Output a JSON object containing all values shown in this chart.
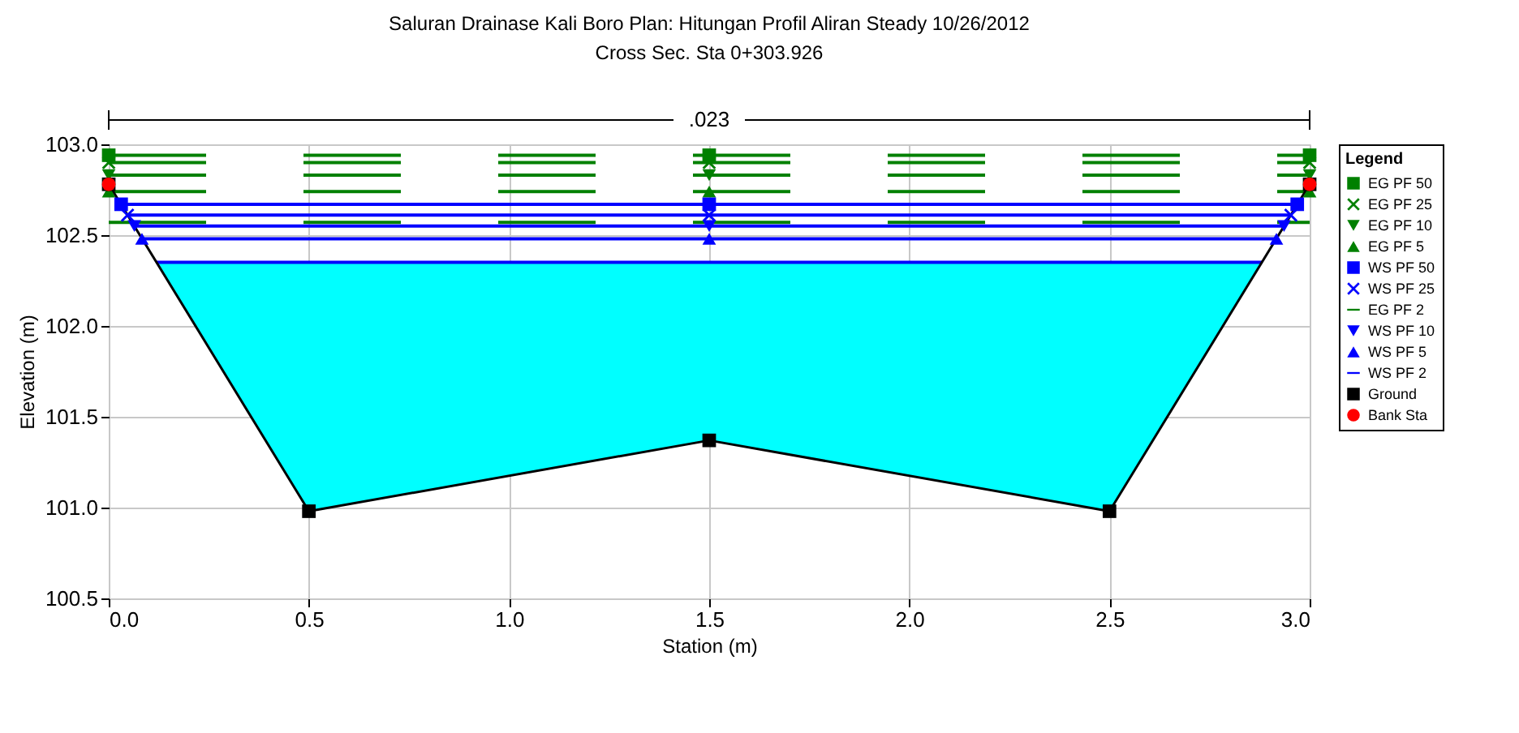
{
  "chart_data": {
    "type": "line",
    "title": "Saluran Drainase Kali Boro      Plan: Hitungan Profil Aliran Steady      10/26/2012",
    "subtitle": "Cross Sec. Sta 0+303.926",
    "xlabel": "Station (m)",
    "ylabel": "Elevation (m)",
    "legend_title": "Legend",
    "annotations": [
      ".023"
    ],
    "xlim": [
      0,
      3
    ],
    "ylim": [
      100.5,
      103
    ],
    "xticks": [
      {
        "value": 0,
        "label": "0.0"
      },
      0.5,
      {
        "value": 1,
        "label": "1.0"
      },
      1.5,
      {
        "value": 2,
        "label": "2.0"
      },
      2.5,
      {
        "value": 3,
        "label": "3.0"
      }
    ],
    "yticks": [
      100.5,
      {
        "value": 101,
        "label": "101.0"
      },
      101.5,
      {
        "value": 102,
        "label": "102.0"
      },
      102.5,
      {
        "value": 103,
        "label": "103.0"
      }
    ],
    "grid": true,
    "legend": "right",
    "series": [
      {
        "name": "EG PF 50",
        "color": "#008000",
        "marker": "square",
        "line_style": "dashed",
        "x": [
          0,
          1.5,
          3
        ],
        "values": [
          102.94,
          102.94,
          102.94
        ]
      },
      {
        "name": "EG PF 25",
        "color": "#008000",
        "marker": "cross",
        "line_style": "dashed",
        "x": [
          0,
          1.5,
          3
        ],
        "values": [
          102.9,
          102.9,
          102.9
        ]
      },
      {
        "name": "EG PF 10",
        "color": "#008000",
        "marker": "triangle_down",
        "line_style": "dashed",
        "x": [
          0,
          1.5,
          3
        ],
        "values": [
          102.83,
          102.83,
          102.83
        ]
      },
      {
        "name": "EG PF 5",
        "color": "#008000",
        "marker": "triangle",
        "line_style": "dashed",
        "x": [
          0,
          1.5,
          3
        ],
        "values": [
          102.74,
          102.74,
          102.74
        ]
      },
      {
        "name": "WS PF 50",
        "color": "#0000ff",
        "marker": "square",
        "line_style": "solid",
        "x": [
          0.031,
          1.5,
          2.969
        ],
        "values": [
          102.67,
          102.67,
          102.67
        ]
      },
      {
        "name": "WS PF 25",
        "color": "#0000ff",
        "marker": "cross",
        "line_style": "solid",
        "x": [
          0.047,
          1.5,
          2.953
        ],
        "values": [
          102.61,
          102.61,
          102.61
        ]
      },
      {
        "name": "EG PF 2",
        "color": "#008000",
        "marker": "none",
        "line_style": "dashed",
        "x": [
          0,
          1.5,
          3
        ],
        "values": [
          102.57,
          102.57,
          102.57
        ]
      },
      {
        "name": "WS PF 10",
        "color": "#0000ff",
        "marker": "triangle_down",
        "line_style": "solid",
        "x": [
          0.064,
          1.5,
          2.936
        ],
        "values": [
          102.55,
          102.55,
          102.55
        ]
      },
      {
        "name": "WS PF 5",
        "color": "#0000ff",
        "marker": "triangle",
        "line_style": "solid",
        "x": [
          0.083,
          1.5,
          2.917
        ],
        "values": [
          102.48,
          102.48,
          102.48
        ]
      },
      {
        "name": "WS PF 2",
        "color": "#0000ff",
        "marker": "none",
        "line_style": "solid",
        "x": [
          0.119,
          0.5,
          1.5,
          2.5,
          2.881
        ],
        "values": [
          102.35,
          102.35,
          102.35,
          102.35,
          102.35
        ],
        "upper": [
          102.35,
          102.35,
          102.35,
          102.35,
          102.35
        ],
        "lower": [
          102.35,
          100.98,
          101.37,
          100.98,
          102.35
        ]
      },
      {
        "name": "Ground",
        "color": "#000000",
        "marker": "square",
        "line_style": "solid",
        "x": [
          0,
          0.5,
          1.5,
          2.5,
          3
        ],
        "values": [
          102.78,
          100.98,
          101.37,
          100.98,
          102.78
        ]
      },
      {
        "name": "Bank Sta",
        "type": "scatter",
        "color": "#ff0000",
        "marker": "circle",
        "x": [
          0,
          3
        ],
        "values": [
          102.78,
          102.78
        ]
      }
    ]
  }
}
